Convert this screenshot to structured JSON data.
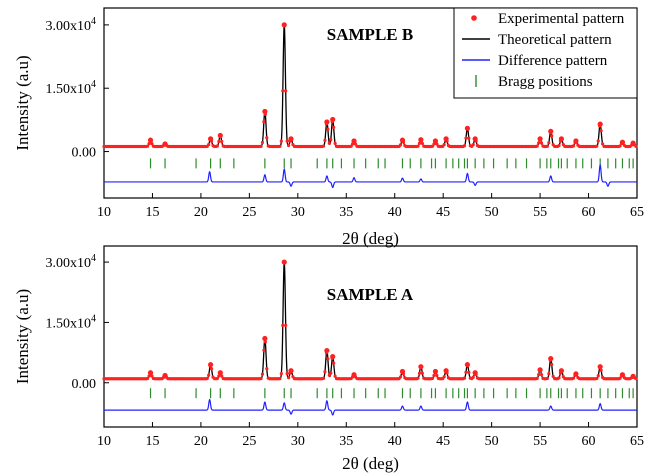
{
  "chart_data": [
    {
      "type": "line",
      "title": "SAMPLE B",
      "xlabel": "2θ (deg)",
      "ylabel": "Intensity (a.u)",
      "xlim": [
        10,
        65
      ],
      "ylim": [
        -11000,
        34000
      ],
      "x_ticks": [
        10,
        15,
        20,
        25,
        30,
        35,
        40,
        45,
        50,
        55,
        60,
        65
      ],
      "y_ticks": [
        {
          "value": 0,
          "label": "0.00"
        },
        {
          "value": 15000,
          "label": "1.50x10",
          "exp": "4"
        },
        {
          "value": 30000,
          "label": "3.00x10",
          "exp": "4"
        }
      ],
      "baseline": 1200,
      "bragg_level": -2800,
      "diff_level": -7200,
      "peaks": [
        {
          "x": 14.8,
          "y": 2700
        },
        {
          "x": 16.3,
          "y": 1800
        },
        {
          "x": 21.0,
          "y": 3000
        },
        {
          "x": 22.0,
          "y": 3800
        },
        {
          "x": 26.6,
          "y": 9500
        },
        {
          "x": 28.6,
          "y": 30000
        },
        {
          "x": 29.3,
          "y": 3000
        },
        {
          "x": 33.0,
          "y": 7000
        },
        {
          "x": 33.6,
          "y": 7600
        },
        {
          "x": 35.8,
          "y": 2500
        },
        {
          "x": 40.8,
          "y": 2700
        },
        {
          "x": 42.7,
          "y": 2800
        },
        {
          "x": 44.2,
          "y": 2500
        },
        {
          "x": 45.3,
          "y": 3000
        },
        {
          "x": 47.5,
          "y": 5500
        },
        {
          "x": 48.3,
          "y": 3000
        },
        {
          "x": 55.0,
          "y": 3000
        },
        {
          "x": 56.1,
          "y": 4800
        },
        {
          "x": 57.2,
          "y": 3000
        },
        {
          "x": 58.7,
          "y": 2500
        },
        {
          "x": 61.2,
          "y": 6500
        },
        {
          "x": 63.5,
          "y": 2200
        },
        {
          "x": 64.6,
          "y": 2000
        }
      ],
      "difference_spikes": [
        {
          "x": 20.9,
          "y": -4800
        },
        {
          "x": 26.6,
          "y": -5500
        },
        {
          "x": 28.6,
          "y": -4200
        },
        {
          "x": 29.3,
          "y": -8200
        },
        {
          "x": 33.0,
          "y": -5800
        },
        {
          "x": 33.6,
          "y": -8500
        },
        {
          "x": 35.8,
          "y": -6200
        },
        {
          "x": 40.8,
          "y": -6300
        },
        {
          "x": 42.7,
          "y": -6500
        },
        {
          "x": 47.5,
          "y": -5200
        },
        {
          "x": 48.3,
          "y": -8000
        },
        {
          "x": 56.1,
          "y": -5800
        },
        {
          "x": 61.2,
          "y": -3200
        },
        {
          "x": 62.0,
          "y": -8200
        }
      ],
      "bragg_positions": [
        14.8,
        16.3,
        19.5,
        21.0,
        22.0,
        23.4,
        26.6,
        28.6,
        29.3,
        32.0,
        33.0,
        33.6,
        34.5,
        35.8,
        37.0,
        38.3,
        39.0,
        40.8,
        41.6,
        42.7,
        43.8,
        44.2,
        45.3,
        46.0,
        46.6,
        47.2,
        47.5,
        48.3,
        49.2,
        50.2,
        51.6,
        52.5,
        53.6,
        55.0,
        55.7,
        56.1,
        56.9,
        57.2,
        57.8,
        58.7,
        59.4,
        60.3,
        61.2,
        62.0,
        62.8,
        63.5,
        64.2,
        64.6
      ],
      "legend": [
        {
          "label": "Experimental pattern",
          "color": "#ff2020",
          "marker": "dot"
        },
        {
          "label": "Theoretical pattern",
          "color": "#000000",
          "marker": "line"
        },
        {
          "label": "Difference pattern",
          "color": "#2020ff",
          "marker": "line"
        },
        {
          "label": "Bragg positions",
          "color": "#2e8b2e",
          "marker": "tick"
        }
      ]
    },
    {
      "type": "line",
      "title": "SAMPLE A",
      "xlabel": "2θ (deg)",
      "ylabel": "Intensity (a.u)",
      "xlim": [
        10,
        65
      ],
      "ylim": [
        -11000,
        34000
      ],
      "x_ticks": [
        10,
        15,
        20,
        25,
        30,
        35,
        40,
        45,
        50,
        55,
        60,
        65
      ],
      "y_ticks": [
        {
          "value": 0,
          "label": "0.00"
        },
        {
          "value": 15000,
          "label": "1.50x10",
          "exp": "4"
        },
        {
          "value": 30000,
          "label": "3.00x10",
          "exp": "4"
        }
      ],
      "baseline": 1000,
      "bragg_level": -2600,
      "diff_level": -6800,
      "peaks": [
        {
          "x": 14.8,
          "y": 2500
        },
        {
          "x": 16.3,
          "y": 1800
        },
        {
          "x": 21.0,
          "y": 4500
        },
        {
          "x": 22.0,
          "y": 2500
        },
        {
          "x": 26.6,
          "y": 11000
        },
        {
          "x": 28.6,
          "y": 30000
        },
        {
          "x": 29.3,
          "y": 3000
        },
        {
          "x": 33.0,
          "y": 8000
        },
        {
          "x": 33.6,
          "y": 6500
        },
        {
          "x": 35.8,
          "y": 2000
        },
        {
          "x": 40.8,
          "y": 2800
        },
        {
          "x": 42.7,
          "y": 4000
        },
        {
          "x": 44.2,
          "y": 2800
        },
        {
          "x": 45.3,
          "y": 3000
        },
        {
          "x": 47.5,
          "y": 4500
        },
        {
          "x": 48.3,
          "y": 2500
        },
        {
          "x": 55.0,
          "y": 3200
        },
        {
          "x": 56.1,
          "y": 6000
        },
        {
          "x": 57.2,
          "y": 3000
        },
        {
          "x": 58.7,
          "y": 2200
        },
        {
          "x": 61.2,
          "y": 4000
        },
        {
          "x": 63.5,
          "y": 2000
        },
        {
          "x": 64.6,
          "y": 1600
        }
      ],
      "difference_spikes": [
        {
          "x": 20.9,
          "y": -4200
        },
        {
          "x": 26.6,
          "y": -4800
        },
        {
          "x": 28.6,
          "y": -5000
        },
        {
          "x": 29.3,
          "y": -7800
        },
        {
          "x": 33.0,
          "y": -4500
        },
        {
          "x": 33.6,
          "y": -8000
        },
        {
          "x": 40.8,
          "y": -5800
        },
        {
          "x": 42.7,
          "y": -5800
        },
        {
          "x": 47.5,
          "y": -4800
        },
        {
          "x": 56.1,
          "y": -5800
        },
        {
          "x": 61.2,
          "y": -5200
        }
      ],
      "bragg_positions": [
        14.8,
        16.3,
        19.5,
        21.0,
        22.0,
        23.4,
        26.6,
        28.6,
        29.3,
        32.0,
        33.0,
        33.6,
        34.5,
        35.8,
        37.0,
        38.3,
        39.0,
        40.8,
        41.6,
        42.7,
        43.8,
        44.2,
        45.3,
        46.0,
        46.6,
        47.2,
        47.5,
        48.3,
        49.2,
        50.2,
        51.6,
        52.5,
        53.6,
        55.0,
        55.7,
        56.1,
        56.9,
        57.2,
        57.8,
        58.7,
        59.4,
        60.3,
        61.2,
        62.0,
        62.8,
        63.5,
        64.2,
        64.6
      ]
    }
  ]
}
